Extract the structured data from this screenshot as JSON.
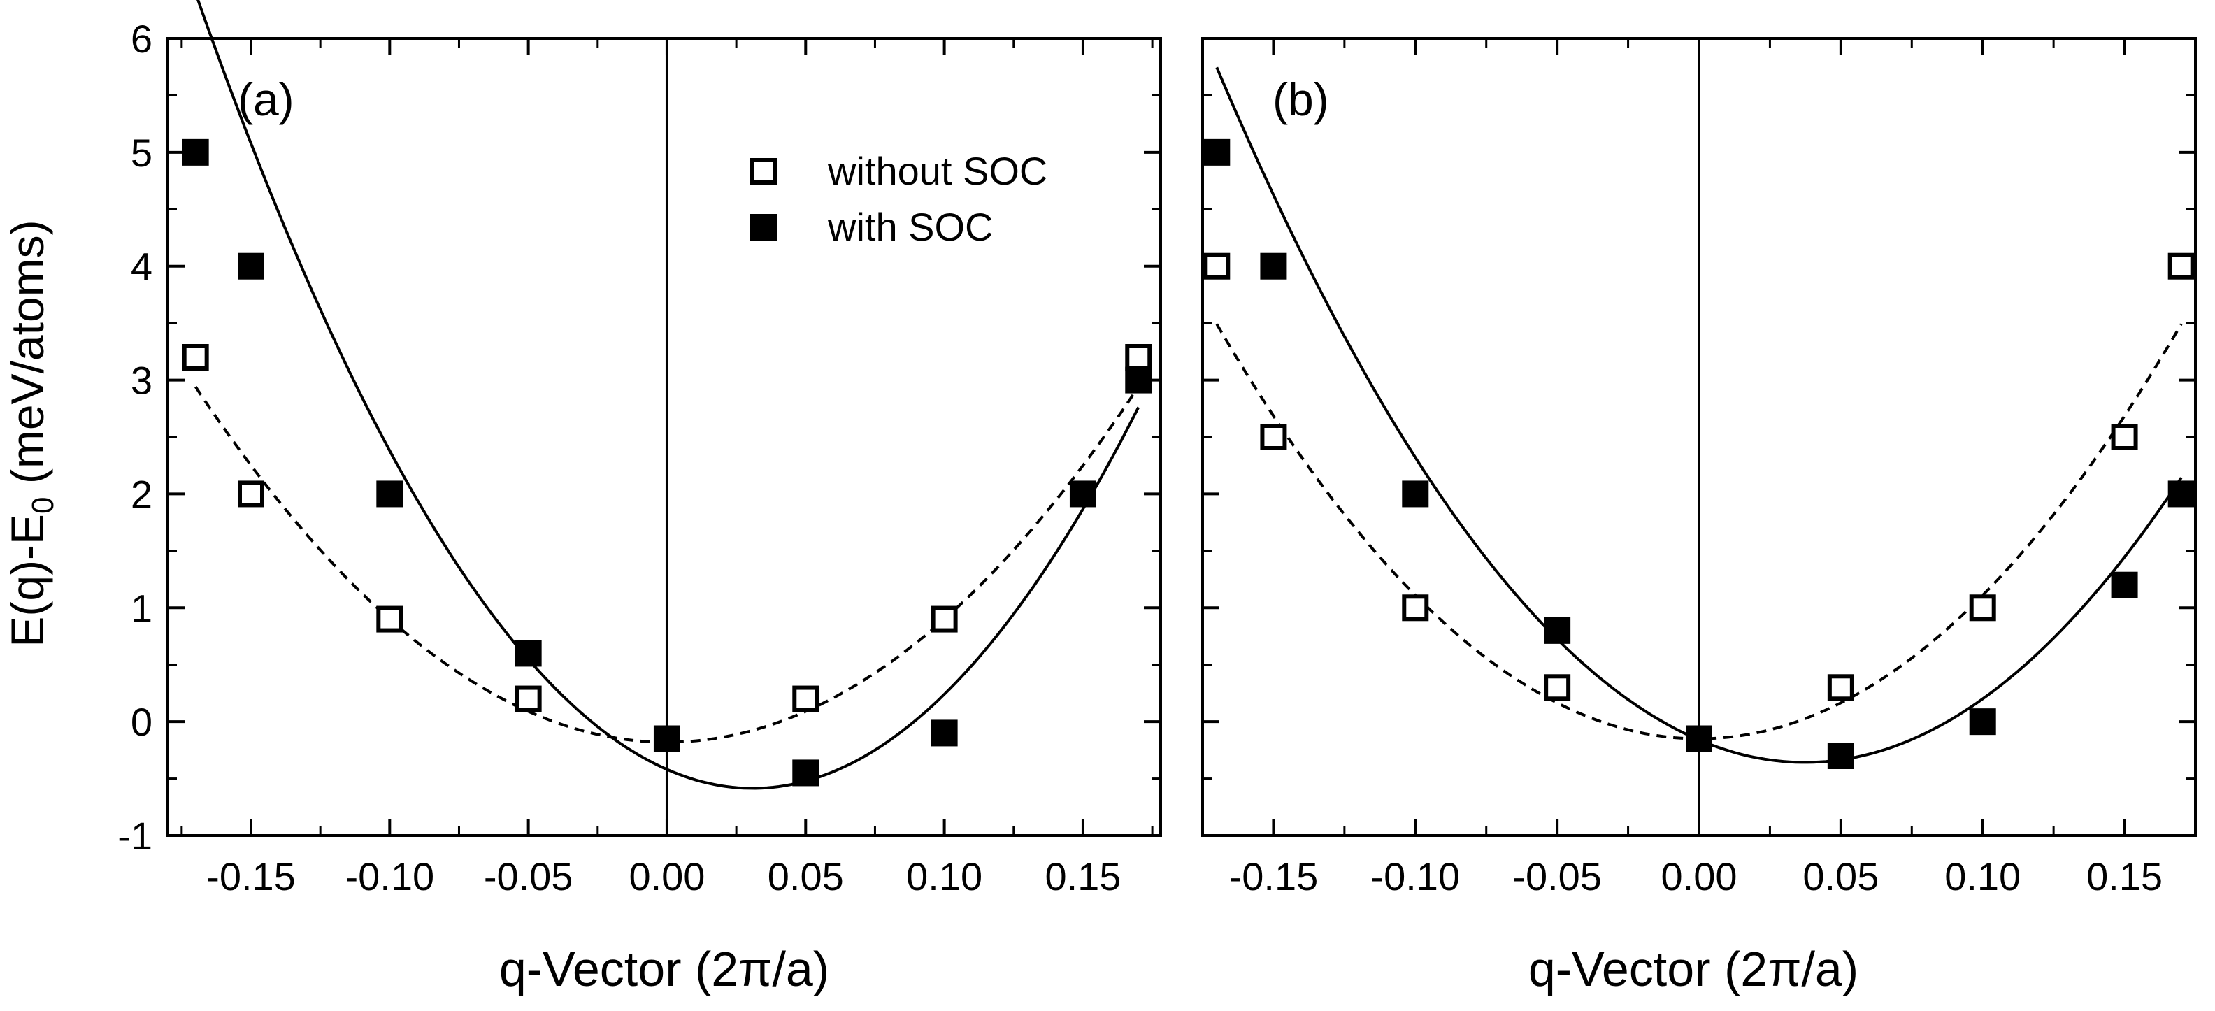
{
  "figure": {
    "ylabel_main": "E(q)-E",
    "ylabel_sub": "0",
    "ylabel_unit": " (meV/atoms)",
    "xlabel": "q-Vector (2π/a)"
  },
  "chart_data": [
    {
      "type": "scatter",
      "panel_label": "(a)",
      "xlim": [
        -0.18,
        0.178
      ],
      "ylim": [
        -1,
        6
      ],
      "x_ticks": [
        -0.15,
        -0.1,
        -0.05,
        0.0,
        0.05,
        0.1,
        0.15
      ],
      "x_tick_labels": [
        "-0.15",
        "-0.10",
        "-0.05",
        "0.00",
        "0.05",
        "0.10",
        "0.15"
      ],
      "y_ticks": [
        -1,
        0,
        1,
        2,
        3,
        4,
        5,
        6
      ],
      "y_tick_labels": [
        "-1",
        "0",
        "1",
        "2",
        "3",
        "4",
        "5",
        "6"
      ],
      "legend": {
        "position": "top-right",
        "entries": [
          {
            "label": "without SOC",
            "marker": "open-square"
          },
          {
            "label": "with SOC",
            "marker": "filled-square"
          }
        ]
      },
      "series": [
        {
          "name": "without SOC",
          "marker": "open-square",
          "x": [
            -0.17,
            -0.15,
            -0.1,
            -0.05,
            0.0,
            0.05,
            0.1,
            0.17
          ],
          "y": [
            3.2,
            2.0,
            0.9,
            0.2,
            -0.15,
            0.2,
            0.9,
            3.2
          ],
          "fit": {
            "style": "dashed",
            "a": 108.0,
            "b": 0.0,
            "c": -0.18
          }
        },
        {
          "name": "with SOC",
          "marker": "filled-square",
          "x": [
            -0.17,
            -0.15,
            -0.1,
            -0.05,
            0.0,
            0.05,
            0.1,
            0.15,
            0.17
          ],
          "y": [
            5.0,
            4.0,
            2.0,
            0.6,
            -0.15,
            -0.45,
            -0.1,
            2.0,
            3.0
          ],
          "fit": {
            "style": "solid",
            "a": 173.0,
            "b": -10.7,
            "c": -0.42
          }
        }
      ]
    },
    {
      "type": "scatter",
      "panel_label": "(b)",
      "xlim": [
        -0.175,
        0.175
      ],
      "ylim": [
        -1,
        6
      ],
      "x_ticks": [
        -0.15,
        -0.1,
        -0.05,
        0.0,
        0.05,
        0.1,
        0.15
      ],
      "x_tick_labels": [
        "-0.15",
        "-0.10",
        "-0.05",
        "0.00",
        "0.05",
        "0.10",
        "0.15"
      ],
      "y_ticks": [
        -1,
        0,
        1,
        2,
        3,
        4,
        5,
        6
      ],
      "series": [
        {
          "name": "without SOC",
          "marker": "open-square",
          "x": [
            -0.17,
            -0.15,
            -0.1,
            -0.05,
            0.0,
            0.05,
            0.1,
            0.15,
            0.17
          ],
          "y": [
            4.0,
            2.5,
            1.0,
            0.3,
            -0.15,
            0.3,
            1.0,
            2.5,
            4.0
          ],
          "fit": {
            "style": "dashed",
            "a": 126.0,
            "b": 0.0,
            "c": -0.15
          }
        },
        {
          "name": "with SOC",
          "marker": "filled-square",
          "x": [
            -0.17,
            -0.15,
            -0.1,
            -0.05,
            0.0,
            0.05,
            0.1,
            0.15,
            0.17
          ],
          "y": [
            5.0,
            4.0,
            2.0,
            0.8,
            -0.15,
            -0.3,
            0.0,
            1.2,
            2.0
          ],
          "fit": {
            "style": "solid",
            "a": 142.0,
            "b": -10.6,
            "c": -0.16
          }
        }
      ]
    }
  ]
}
